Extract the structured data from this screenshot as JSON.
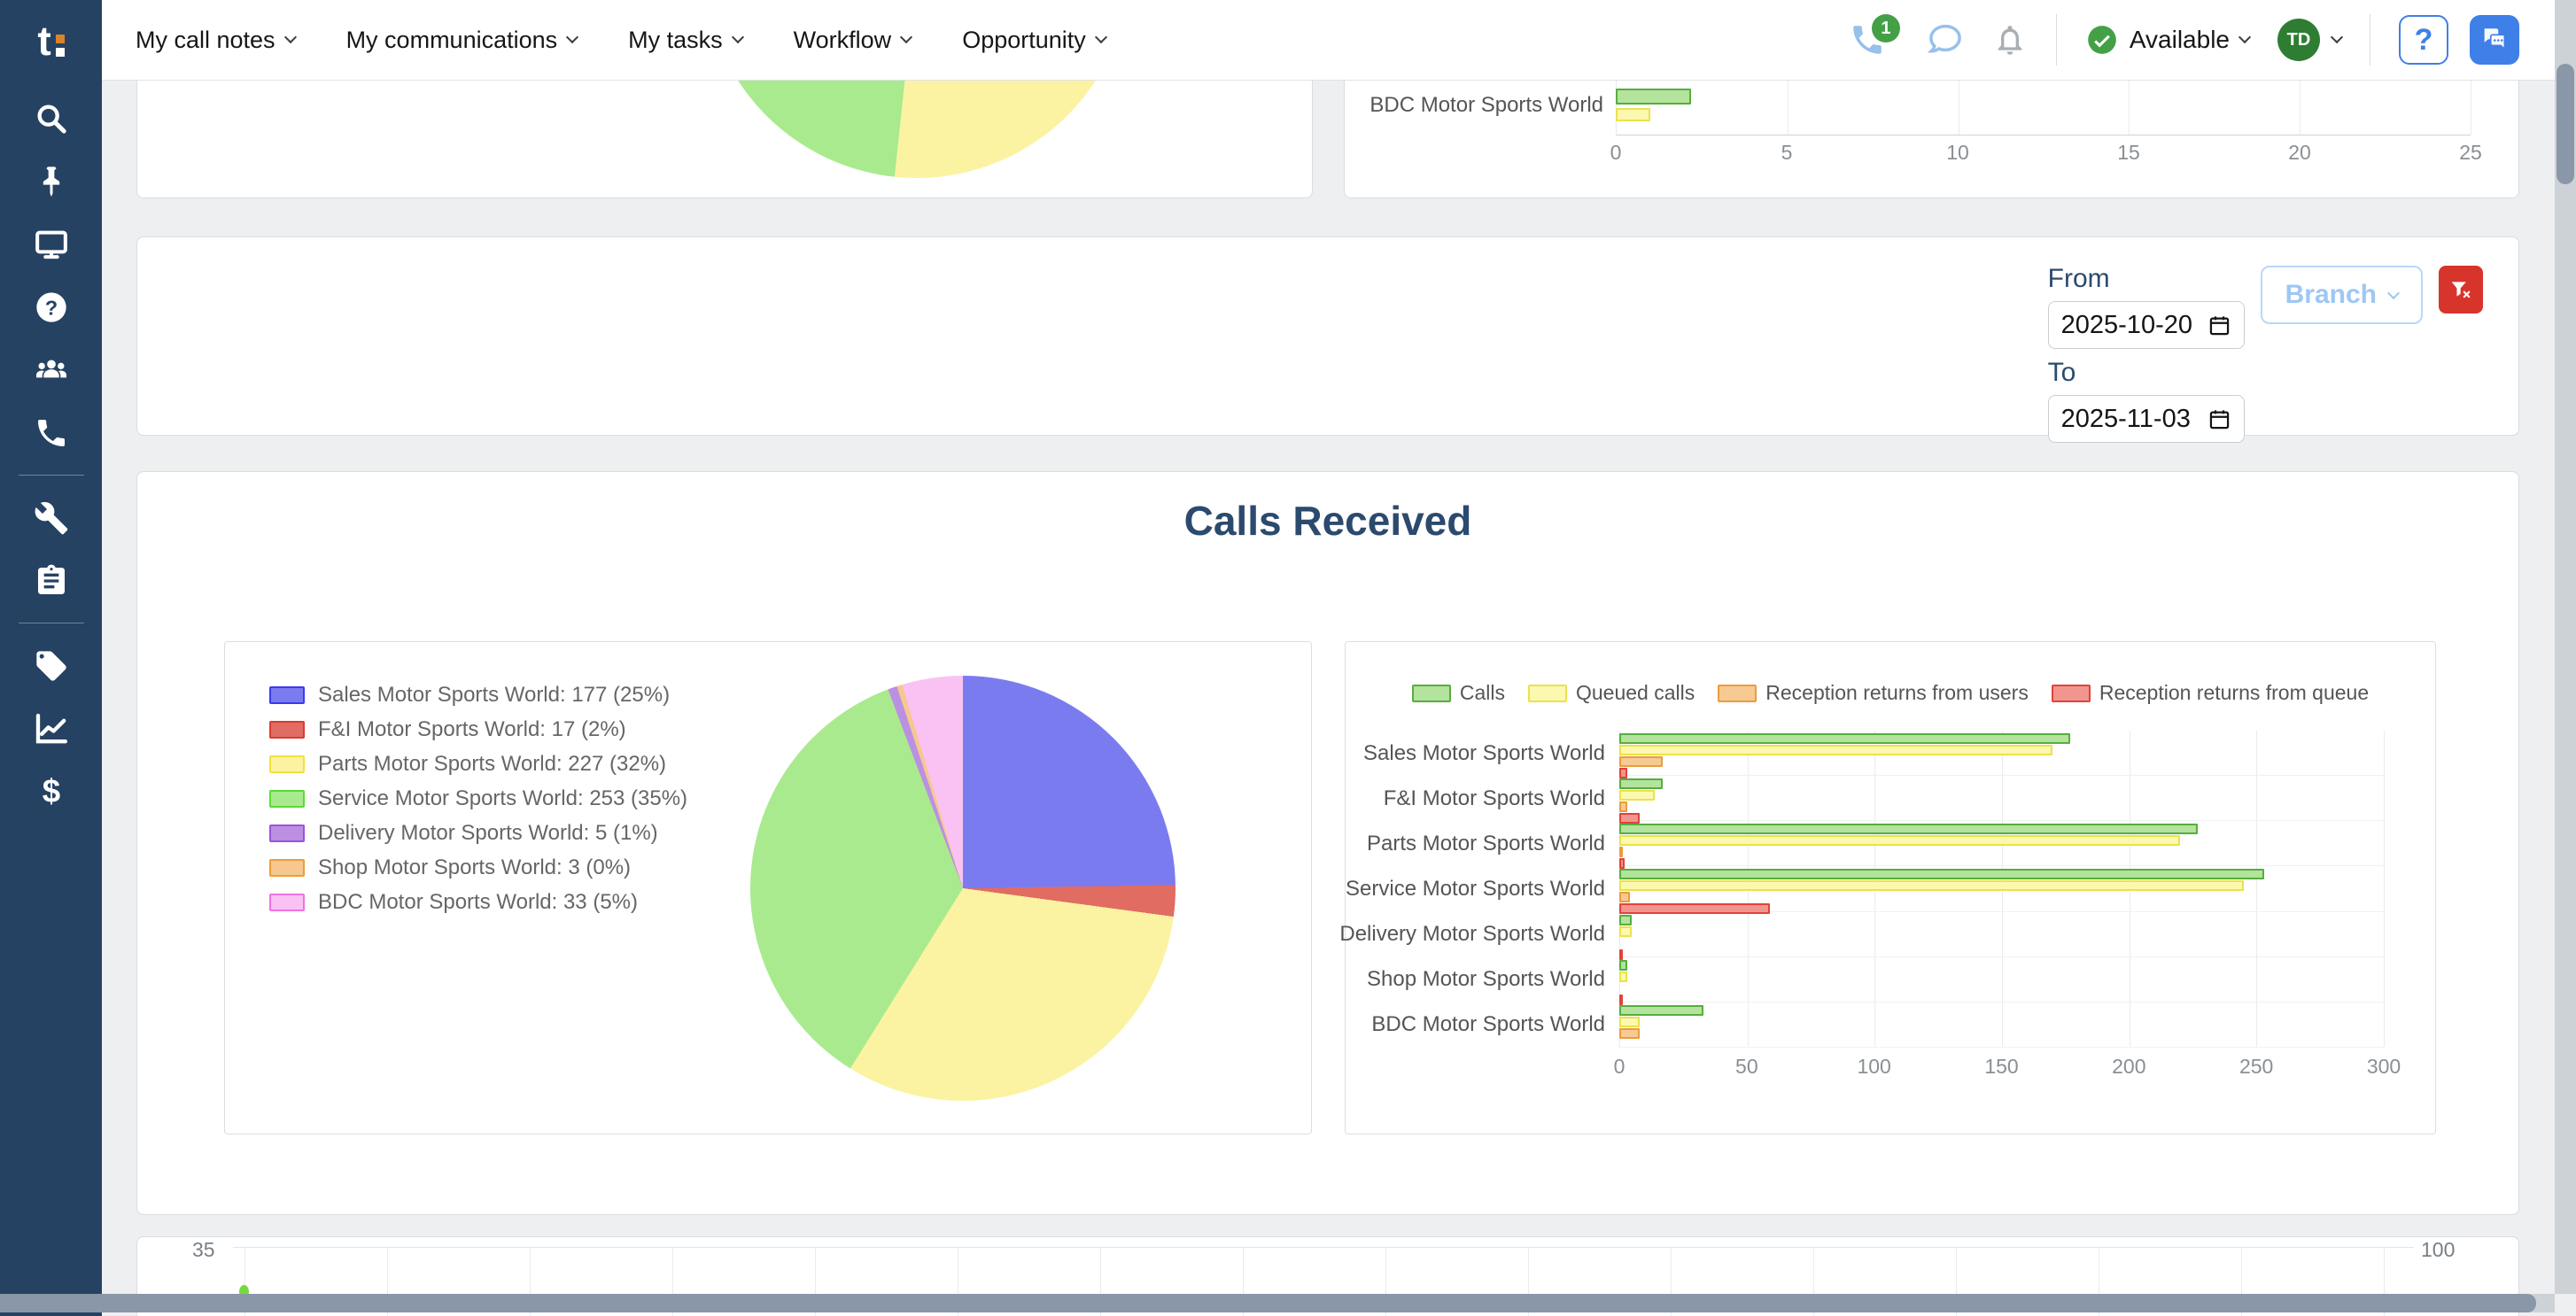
{
  "brand": {
    "logo_text": "t",
    "logo_accent_color": "#d9822b"
  },
  "topnav": [
    {
      "label": "My call notes"
    },
    {
      "label": "My communications"
    },
    {
      "label": "My tasks"
    },
    {
      "label": "Workflow"
    },
    {
      "label": "Opportunity"
    }
  ],
  "topbar": {
    "phone_badge": "1",
    "status_label": "Available",
    "avatar_initials": "TD",
    "help_label": "?"
  },
  "sidebar_icons": [
    "search",
    "pin",
    "display",
    "help-circle",
    "users",
    "phone",
    "wrench",
    "tasks-clipboard",
    "tag",
    "chart-line",
    "dollar"
  ],
  "topbar_icons": [
    "phone",
    "chat-bubble",
    "bell",
    "check-circle",
    "question",
    "forum"
  ],
  "filters": {
    "from_label": "From",
    "from_value": "2025-10-20",
    "to_label": "To",
    "to_value": "2025-11-03",
    "branch_label": "Branch"
  },
  "section_title": "Calls Received",
  "colors": {
    "sidebar": "#254263",
    "accent_blue": "#3f7fe8",
    "status_green": "#43a047",
    "danger_red": "#d7342c",
    "title_navy": "#2b4a6d"
  },
  "chart_data": [
    {
      "id": "top-card-partial-pie",
      "type": "pie",
      "note": "only bottom of pie visible, cut off by scroll",
      "left_color": "#a9ea8f",
      "right_color": "#fbf3a1",
      "boundary_angle_deg": 186
    },
    {
      "id": "top-card-partial-bars",
      "type": "bar",
      "orientation": "horizontal",
      "note": "only last row visible, cut off by scroll",
      "categories": [
        "BDC Motor Sports World"
      ],
      "series": [
        {
          "name": "green",
          "fill": "#b3e39c",
          "border": "#56ae3e",
          "values": [
            2.2
          ]
        },
        {
          "name": "yellow",
          "fill": "#fcf8b0",
          "border": "#e9e34a",
          "values": [
            1
          ]
        }
      ],
      "xlim": [
        0,
        25
      ],
      "xticks": [
        0,
        5,
        10,
        15,
        20,
        25
      ]
    },
    {
      "id": "calls-received-pie",
      "type": "pie",
      "title": "Calls Received",
      "legend_position": "left",
      "slices": [
        {
          "label": "Sales Motor Sports World: 177 (25%)",
          "value": 177,
          "fill": "#7b7bf0",
          "border": "#3a3af2"
        },
        {
          "label": "F&I Motor Sports World: 17 (2%)",
          "value": 17,
          "fill": "#e06c62",
          "border": "#dc3a2f"
        },
        {
          "label": "Parts Motor Sports World: 227 (32%)",
          "value": 227,
          "fill": "#fbf3a1",
          "border": "#f0e23c"
        },
        {
          "label": "Service Motor Sports World: 253 (35%)",
          "value": 253,
          "fill": "#a9ea8f",
          "border": "#5ada35"
        },
        {
          "label": "Delivery Motor Sports World: 5 (1%)",
          "value": 5,
          "fill": "#bb90e2",
          "border": "#9c52db"
        },
        {
          "label": "Shop Motor Sports World: 3 (0%)",
          "value": 3,
          "fill": "#f6c78e",
          "border": "#ee9d38"
        },
        {
          "label": "BDC Motor Sports World: 33 (5%)",
          "value": 33,
          "fill": "#f9c2f2",
          "border": "#ef72e4"
        }
      ]
    },
    {
      "id": "calls-received-bars",
      "type": "bar",
      "orientation": "horizontal",
      "categories": [
        "Sales Motor Sports World",
        "F&I Motor Sports World",
        "Parts Motor Sports World",
        "Service Motor Sports World",
        "Delivery Motor Sports World",
        "Shop Motor Sports World",
        "BDC Motor Sports World"
      ],
      "series": [
        {
          "name": "Calls",
          "fill": "#b3e39c",
          "border": "#56ae3e",
          "values": [
            177,
            17,
            227,
            253,
            5,
            3,
            33
          ]
        },
        {
          "name": "Queued calls",
          "fill": "#fcf8b0",
          "border": "#e9e34a",
          "values": [
            170,
            14,
            220,
            245,
            5,
            3,
            8
          ]
        },
        {
          "name": "Reception returns from users",
          "fill": "#f6ca92",
          "border": "#eb9c3e",
          "values": [
            17,
            3,
            1,
            4,
            0,
            0,
            8
          ]
        },
        {
          "name": "Reception returns from queue",
          "fill": "#f1968e",
          "border": "#e2423a",
          "values": [
            3,
            8,
            2,
            59,
            1,
            1,
            0
          ]
        }
      ],
      "xlim": [
        0,
        300
      ],
      "xticks": [
        0,
        50,
        100,
        150,
        200,
        250,
        300
      ]
    },
    {
      "id": "bottom-partial-chart",
      "type": "line",
      "note": "cut off at bottom of viewport; dual y axes",
      "left_axis_top_tick": "35",
      "right_axis_top_tick": "100",
      "gridline_spacing_px": 161,
      "visible_points": [
        {
          "x_index": 0,
          "color": "#76d83e"
        }
      ]
    }
  ]
}
